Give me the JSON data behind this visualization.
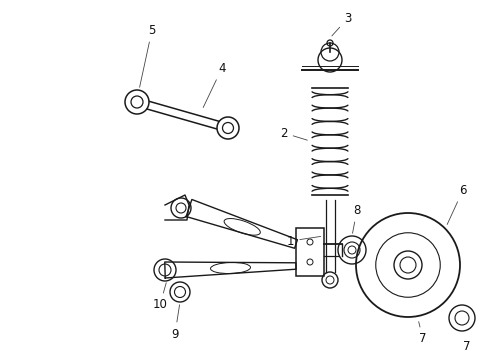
{
  "background_color": "#ffffff",
  "line_color": "#1a1a1a",
  "figure_width": 4.9,
  "figure_height": 3.6,
  "dpi": 100,
  "label_fontsize": 8.5
}
